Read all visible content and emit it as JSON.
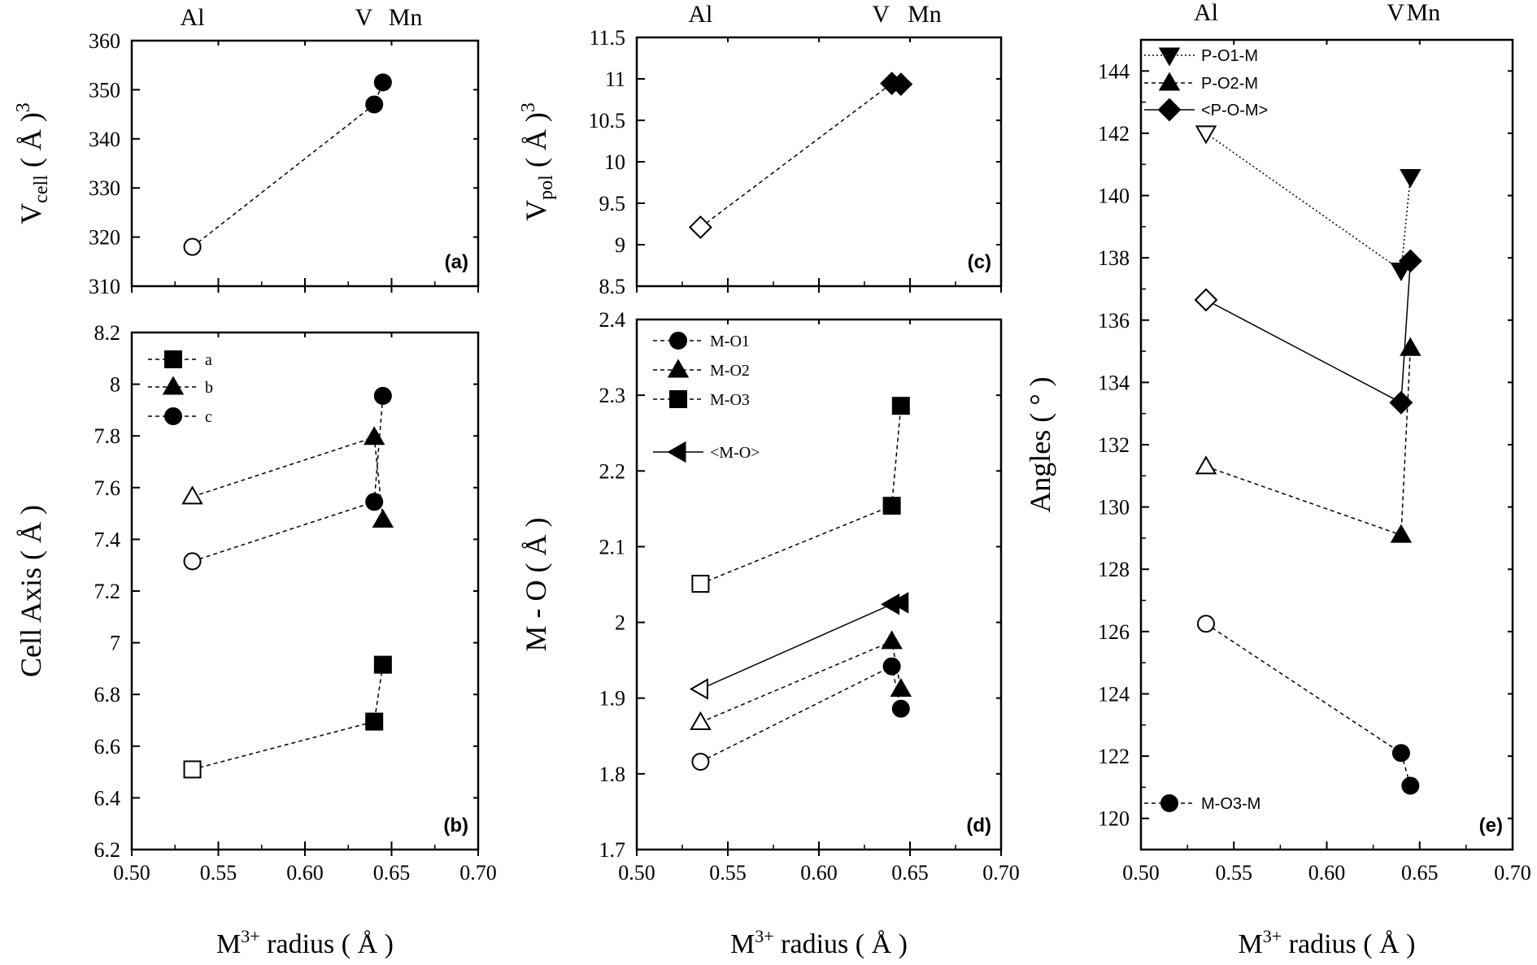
{
  "chart_data": [
    {
      "id": "a",
      "type": "line",
      "panel_label": "(a)",
      "ylabel": "V_cell (Å)^3",
      "xlim": [
        0.5,
        0.7
      ],
      "ylim": [
        310,
        360
      ],
      "yticks": [
        310,
        320,
        330,
        340,
        350,
        360
      ],
      "xticks": [
        0.5,
        0.55,
        0.6,
        0.65,
        0.7
      ],
      "x_tick_labels_shown": false,
      "top_labels": [
        "Al",
        "V",
        "Mn"
      ],
      "series": [
        {
          "name": "",
          "x": [
            0.535,
            0.64,
            0.645
          ],
          "y": [
            318.0,
            347.0,
            351.5
          ],
          "marker": "circle",
          "filled": [
            false,
            true,
            true
          ],
          "line": "dashed"
        }
      ]
    },
    {
      "id": "b",
      "type": "line",
      "panel_label": "(b)",
      "ylabel": "Cell Axis ( Å )",
      "xlabel": "M3+ radius ( Å )",
      "xlim": [
        0.5,
        0.7
      ],
      "ylim": [
        6.2,
        8.2
      ],
      "yticks": [
        6.2,
        6.4,
        6.6,
        6.8,
        7.0,
        7.2,
        7.4,
        7.6,
        7.8,
        8.0,
        8.2
      ],
      "xticks": [
        0.5,
        0.55,
        0.6,
        0.65,
        0.7
      ],
      "legend_position": "top-left",
      "series": [
        {
          "name": "a",
          "x": [
            0.535,
            0.64,
            0.645
          ],
          "y": [
            6.51,
            6.695,
            6.915
          ],
          "marker": "square",
          "filled": [
            false,
            true,
            true
          ],
          "line": "dashed"
        },
        {
          "name": "b",
          "x": [
            0.535,
            0.64,
            0.645
          ],
          "y": [
            7.565,
            7.795,
            7.475
          ],
          "marker": "triangle-up",
          "filled": [
            false,
            true,
            true
          ],
          "line": "dashed"
        },
        {
          "name": "c",
          "x": [
            0.535,
            0.64,
            0.645
          ],
          "y": [
            7.315,
            7.545,
            7.955
          ],
          "marker": "circle",
          "filled": [
            false,
            true,
            true
          ],
          "line": "dashed"
        }
      ]
    },
    {
      "id": "c",
      "type": "line",
      "panel_label": "(c)",
      "ylabel": "V_pol (Å)^3",
      "xlim": [
        0.5,
        0.7
      ],
      "ylim": [
        8.5,
        11.5
      ],
      "yticks": [
        8.5,
        9.0,
        9.5,
        10.0,
        10.5,
        11.0,
        11.5
      ],
      "xticks": [
        0.5,
        0.55,
        0.6,
        0.65,
        0.7
      ],
      "x_tick_labels_shown": false,
      "top_labels": [
        "Al",
        "V",
        "Mn"
      ],
      "series": [
        {
          "name": "",
          "x": [
            0.535,
            0.64,
            0.645
          ],
          "y": [
            9.21,
            10.945,
            10.935
          ],
          "marker": "diamond",
          "filled": [
            false,
            true,
            true
          ],
          "line": "dashed"
        }
      ]
    },
    {
      "id": "d",
      "type": "line",
      "panel_label": "(d)",
      "ylabel": "M - O ( Å )",
      "xlabel": "M3+ radius ( Å )",
      "xlim": [
        0.5,
        0.7
      ],
      "ylim": [
        1.7,
        2.4
      ],
      "yticks": [
        1.7,
        1.8,
        1.9,
        2.0,
        2.1,
        2.2,
        2.3,
        2.4
      ],
      "xticks": [
        0.5,
        0.55,
        0.6,
        0.65,
        0.7
      ],
      "legend_position": "top-left",
      "series": [
        {
          "name": "M-O1",
          "x": [
            0.535,
            0.64,
            0.645
          ],
          "y": [
            1.816,
            1.942,
            1.886
          ],
          "marker": "circle",
          "filled": [
            false,
            true,
            true
          ],
          "line": "dashed"
        },
        {
          "name": "M-O2",
          "x": [
            0.535,
            0.64,
            0.645
          ],
          "y": [
            1.868,
            1.975,
            1.912
          ],
          "marker": "triangle-up",
          "filled": [
            false,
            true,
            true
          ],
          "line": "dashed"
        },
        {
          "name": "M-O3",
          "x": [
            0.535,
            0.64,
            0.645
          ],
          "y": [
            2.051,
            2.154,
            2.286
          ],
          "marker": "square",
          "filled": [
            false,
            true,
            true
          ],
          "line": "dashed"
        },
        {
          "name": "<M-O>",
          "x": [
            0.535,
            0.64,
            0.645
          ],
          "y": [
            1.912,
            2.024,
            2.026
          ],
          "marker": "triangle-left",
          "filled": [
            false,
            true,
            true
          ],
          "line": "solid"
        }
      ]
    },
    {
      "id": "e",
      "type": "line",
      "panel_label": "(e)",
      "ylabel": "Angles ( ° )",
      "xlabel": "M3+ radius ( Å )",
      "xlim": [
        0.5,
        0.7
      ],
      "ylim": [
        119,
        145
      ],
      "yticks": [
        120,
        122,
        124,
        126,
        128,
        130,
        132,
        134,
        136,
        138,
        140,
        142,
        144
      ],
      "xticks": [
        0.5,
        0.55,
        0.6,
        0.65,
        0.7
      ],
      "top_labels": [
        "Al",
        "V",
        "Mn"
      ],
      "legend_position": "top-left",
      "series": [
        {
          "name": "P-O1-M",
          "x": [
            0.535,
            0.64,
            0.645
          ],
          "y": [
            142.0,
            137.6,
            140.6
          ],
          "marker": "triangle-down",
          "filled": [
            false,
            true,
            true
          ],
          "line": "dotted"
        },
        {
          "name": "P-O2-M",
          "x": [
            0.535,
            0.64,
            0.645
          ],
          "y": [
            131.3,
            129.1,
            135.1
          ],
          "marker": "triangle-up",
          "filled": [
            false,
            true,
            true
          ],
          "line": "dashed"
        },
        {
          "name": "<P-O-M>",
          "x": [
            0.535,
            0.64,
            0.645
          ],
          "y": [
            136.65,
            133.35,
            137.9
          ],
          "marker": "diamond",
          "filled": [
            false,
            true,
            true
          ],
          "line": "solid"
        },
        {
          "name": "M-O3-M",
          "x": [
            0.535,
            0.64,
            0.645
          ],
          "y": [
            126.25,
            122.1,
            121.05
          ],
          "marker": "circle",
          "filled": [
            false,
            true,
            true
          ],
          "line": "dashed"
        }
      ]
    }
  ]
}
